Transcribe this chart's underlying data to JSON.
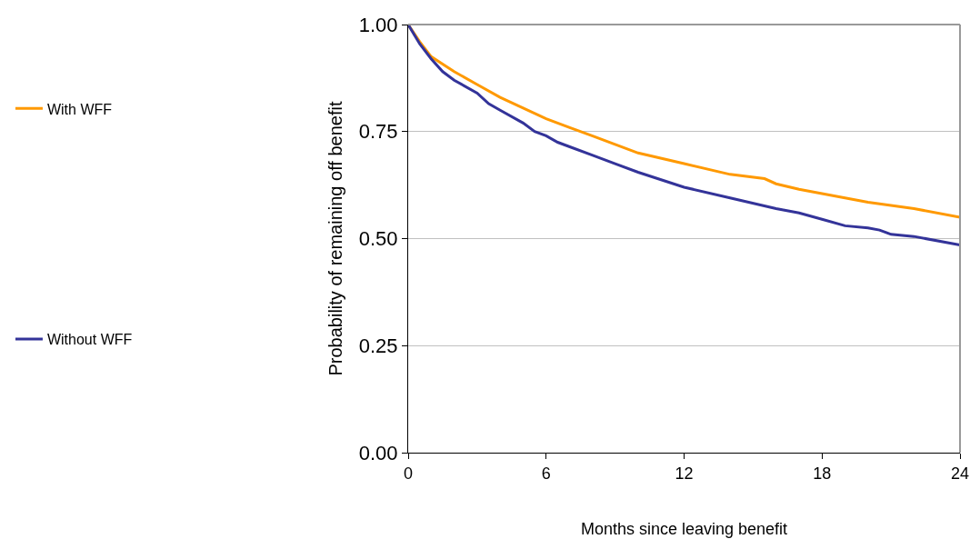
{
  "chart_data": {
    "type": "line",
    "xlabel": "Months since leaving benefit",
    "ylabel": "Probability of remaining off benefit",
    "xlim": [
      0,
      24
    ],
    "xticks": [
      0,
      6,
      12,
      18,
      24
    ],
    "ylim": [
      0,
      1
    ],
    "yticks": [
      {
        "value": 0,
        "label": "0.00"
      },
      {
        "value": 0.25,
        "label": "0.25"
      },
      {
        "value": 0.5,
        "label": "0.50"
      },
      {
        "value": 0.75,
        "label": "0.75"
      },
      {
        "value": 1,
        "label": "1.00"
      }
    ],
    "grid": "y",
    "legend": "left",
    "marker": "none",
    "line_style": "solid",
    "series": [
      {
        "name": "With WFF",
        "color": "#ff9900",
        "x": [
          0,
          0.5,
          1,
          2,
          3,
          4,
          5,
          6,
          7,
          8,
          9,
          10,
          12,
          14,
          15.5,
          16,
          17,
          18,
          19,
          20,
          22,
          24
        ],
        "values": [
          1.0,
          0.96,
          0.925,
          0.89,
          0.86,
          0.83,
          0.805,
          0.78,
          0.76,
          0.74,
          0.72,
          0.7,
          0.675,
          0.65,
          0.64,
          0.628,
          0.615,
          0.605,
          0.595,
          0.585,
          0.57,
          0.55
        ]
      },
      {
        "name": "Without WFF",
        "color": "#333399",
        "x": [
          0,
          0.5,
          1,
          1.5,
          2,
          3,
          3.5,
          4,
          5,
          5.5,
          6,
          6.5,
          7,
          8,
          9,
          10,
          12,
          14,
          16,
          17,
          18,
          19,
          20,
          20.5,
          21,
          22,
          24
        ],
        "values": [
          1.0,
          0.955,
          0.92,
          0.89,
          0.87,
          0.84,
          0.815,
          0.8,
          0.77,
          0.75,
          0.74,
          0.725,
          0.715,
          0.695,
          0.675,
          0.655,
          0.62,
          0.595,
          0.57,
          0.56,
          0.545,
          0.53,
          0.525,
          0.52,
          0.51,
          0.505,
          0.485
        ]
      }
    ]
  }
}
